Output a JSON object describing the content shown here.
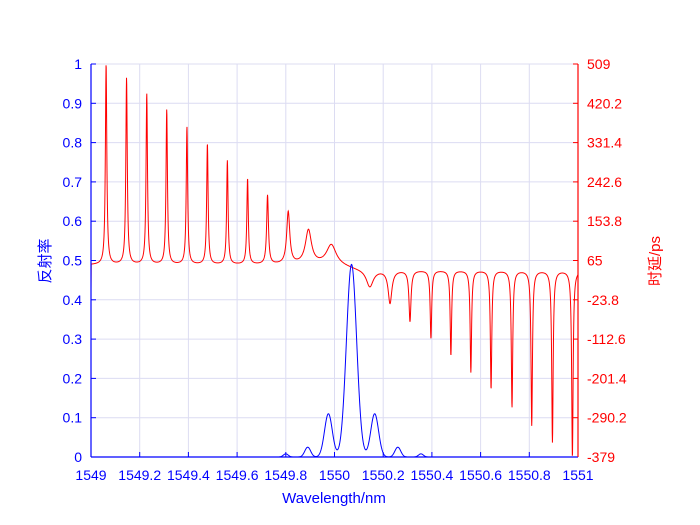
{
  "chart_data": {
    "type": "line",
    "xlabel": "Wavelength/nm",
    "ylabel_left": "反射率",
    "ylabel_right": "时延/ps",
    "xlim": [
      1549,
      1551
    ],
    "ylim_left": [
      0,
      1
    ],
    "ylim_right": [
      -379,
      509
    ],
    "grid": true,
    "x_ticks": [
      "1549",
      "1549.2",
      "1549.4",
      "1549.6",
      "1549.8",
      "1550",
      "1550.2",
      "1550.4",
      "1550.6",
      "1550.8",
      "1551"
    ],
    "x_tick_values": [
      1549,
      1549.2,
      1549.4,
      1549.6,
      1549.8,
      1550,
      1550.2,
      1550.4,
      1550.6,
      1550.8,
      1551
    ],
    "y_left_ticks": [
      "0",
      "0.1",
      "0.2",
      "0.3",
      "0.4",
      "0.5",
      "0.6",
      "0.7",
      "0.8",
      "0.9",
      "1"
    ],
    "y_left_tick_values": [
      0,
      0.1,
      0.2,
      0.3,
      0.4,
      0.5,
      0.6,
      0.7,
      0.8,
      0.9,
      1
    ],
    "y_right_ticks": [
      "-379",
      "-290.2",
      "-201.4",
      "-112.6",
      "-23.8",
      "65",
      "153.8",
      "242.6",
      "331.4",
      "420.2",
      "509"
    ],
    "y_right_tick_values": [
      -379,
      -290.2,
      -201.4,
      -112.6,
      -23.8,
      65,
      153.8,
      242.6,
      331.4,
      420.2,
      509
    ],
    "colors": {
      "reflectivity": "#0000ff",
      "delay": "#ff0000",
      "grid": "#dcdcf2"
    },
    "series": [
      {
        "name": "reflectivity",
        "axis": "left",
        "components": [
          {
            "x": 1550.07,
            "y": 0.49,
            "width": 0.021
          },
          {
            "x": 1549.975,
            "y": 0.11,
            "width": 0.016
          },
          {
            "x": 1550.165,
            "y": 0.11,
            "width": 0.016
          },
          {
            "x": 1549.89,
            "y": 0.025,
            "width": 0.012
          },
          {
            "x": 1550.26,
            "y": 0.025,
            "width": 0.012
          },
          {
            "x": 1549.8,
            "y": 0.008,
            "width": 0.01
          },
          {
            "x": 1550.355,
            "y": 0.008,
            "width": 0.01
          }
        ]
      },
      {
        "name": "delay",
        "axis": "right",
        "baseline_left": 55,
        "baseline_right": 43,
        "peaks": [
          {
            "x": 1549.062,
            "y": 509
          },
          {
            "x": 1549.146,
            "y": 477
          },
          {
            "x": 1549.229,
            "y": 441
          },
          {
            "x": 1549.311,
            "y": 405
          },
          {
            "x": 1549.394,
            "y": 366
          },
          {
            "x": 1549.478,
            "y": 328
          },
          {
            "x": 1549.56,
            "y": 290
          },
          {
            "x": 1549.643,
            "y": 249
          },
          {
            "x": 1549.725,
            "y": 211
          },
          {
            "x": 1549.81,
            "y": 173
          },
          {
            "x": 1549.893,
            "y": 132
          },
          {
            "x": 1549.987,
            "y": 100
          }
        ],
        "dips": [
          {
            "x": 1550.145,
            "y": 5
          },
          {
            "x": 1550.228,
            "y": -31
          },
          {
            "x": 1550.31,
            "y": -72
          },
          {
            "x": 1550.396,
            "y": -110
          },
          {
            "x": 1550.478,
            "y": -149
          },
          {
            "x": 1550.56,
            "y": -187
          },
          {
            "x": 1550.643,
            "y": -225
          },
          {
            "x": 1550.729,
            "y": -266
          },
          {
            "x": 1550.81,
            "y": -307
          },
          {
            "x": 1550.895,
            "y": -345
          },
          {
            "x": 1550.977,
            "y": -379
          }
        ]
      }
    ]
  }
}
